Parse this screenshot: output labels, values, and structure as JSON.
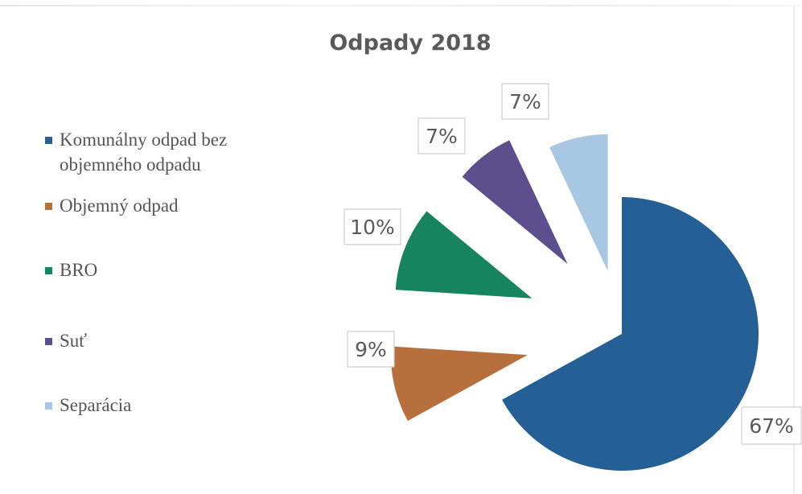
{
  "chart_data": {
    "type": "pie",
    "title": "Odpady 2018",
    "legend_position": "left",
    "categories": [
      "Komunálny odpad bez objemného odpadu",
      "Objemný odpad",
      "BRO",
      "Suť",
      "Separácia"
    ],
    "values": [
      67,
      9,
      10,
      7,
      7
    ],
    "labels": [
      "67%",
      "9%",
      "10%",
      "7%",
      "7%"
    ],
    "colors": [
      "#245f95",
      "#b86f3e",
      "#16845f",
      "#5d4f8d",
      "#a7c7e3"
    ]
  }
}
